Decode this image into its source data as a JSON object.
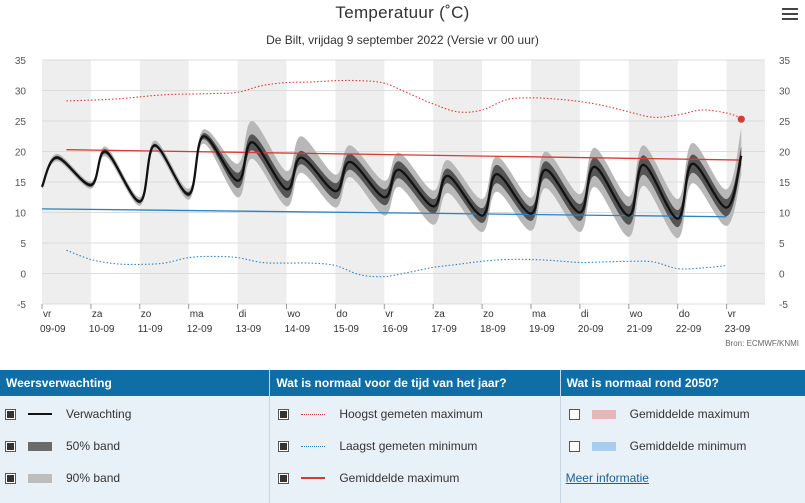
{
  "chart_data": {
    "type": "line",
    "title": "Temperatuur (˚C)",
    "subtitle": "De Bilt, vrijdag 9 september 2022 (Versie vr 00 uur)",
    "source": "Bron: ECMWF/KNMI",
    "ylim": [
      -5,
      35
    ],
    "y_ticks": [
      -5,
      0,
      5,
      10,
      15,
      20,
      25,
      30,
      35
    ],
    "x_ticks": [
      {
        "day": "vr",
        "date": "09-09"
      },
      {
        "day": "za",
        "date": "10-09"
      },
      {
        "day": "zo",
        "date": "11-09"
      },
      {
        "day": "ma",
        "date": "12-09"
      },
      {
        "day": "di",
        "date": "13-09"
      },
      {
        "day": "wo",
        "date": "14-09"
      },
      {
        "day": "do",
        "date": "15-09"
      },
      {
        "day": "vr",
        "date": "16-09"
      },
      {
        "day": "za",
        "date": "17-09"
      },
      {
        "day": "zo",
        "date": "18-09"
      },
      {
        "day": "ma",
        "date": "19-09"
      },
      {
        "day": "di",
        "date": "20-09"
      },
      {
        "day": "wo",
        "date": "21-09"
      },
      {
        "day": "do",
        "date": "22-09"
      },
      {
        "day": "vr",
        "date": "23-09"
      }
    ],
    "grid": true,
    "series": [
      {
        "name": "Verwachting",
        "color": "#111111",
        "diurnal": {
          "days": [
            0,
            0.3,
            1,
            1.3,
            2,
            2.3,
            3,
            3.3,
            4,
            4.3,
            5,
            5.3,
            6,
            6.3,
            7,
            7.3,
            8,
            8.3,
            9,
            9.3,
            10,
            10.3,
            11,
            11.3,
            12,
            12.3,
            13,
            13.3,
            14,
            14.3
          ],
          "values": [
            14.2,
            19.0,
            14.5,
            20.0,
            11.8,
            21.0,
            13.0,
            22.5,
            15.2,
            21.5,
            13.8,
            19.0,
            13.5,
            18.3,
            12.5,
            17.0,
            11.0,
            16.0,
            9.5,
            16.3,
            9.8,
            17.0,
            10.0,
            17.5,
            9.5,
            17.8,
            9.0,
            18.0,
            10.8,
            19.3
          ]
        }
      },
      {
        "name": "50% band",
        "color": "#555555",
        "days": [
          0,
          0.3,
          1,
          1.3,
          2,
          2.3,
          3,
          3.3,
          4,
          4.3,
          5,
          5.3,
          6,
          6.3,
          7,
          7.3,
          8,
          8.3,
          9,
          9.3,
          10,
          10.3,
          11,
          11.3,
          12,
          12.3,
          13,
          13.3,
          14,
          14.3
        ],
        "low": [
          14.0,
          18.7,
          14.2,
          19.6,
          11.5,
          20.7,
          12.6,
          22.0,
          14.0,
          20.2,
          12.4,
          17.9,
          12.2,
          17.0,
          11.2,
          15.6,
          9.8,
          14.8,
          8.3,
          14.8,
          8.6,
          15.6,
          8.6,
          16.0,
          8.0,
          16.2,
          7.6,
          16.5,
          9.4,
          17.8
        ],
        "high": [
          14.4,
          19.3,
          14.8,
          20.4,
          12.1,
          21.3,
          13.4,
          23.0,
          16.5,
          22.8,
          15.2,
          20.1,
          14.8,
          19.6,
          13.8,
          18.4,
          12.2,
          17.2,
          10.7,
          17.8,
          11.0,
          18.4,
          11.4,
          19.0,
          11.0,
          19.4,
          10.4,
          19.5,
          12.2,
          20.8
        ]
      },
      {
        "name": "90% band",
        "color": "#b8b8b8",
        "days": [
          0,
          0.3,
          1,
          1.3,
          2,
          2.3,
          3,
          3.3,
          4,
          4.3,
          5,
          5.3,
          6,
          6.3,
          7,
          7.3,
          8,
          8.3,
          9,
          9.3,
          10,
          10.3,
          11,
          11.3,
          12,
          12.3,
          13,
          13.3,
          14,
          14.3
        ],
        "low": [
          13.8,
          18.4,
          13.9,
          19.2,
          11.1,
          20.2,
          12.1,
          21.3,
          12.5,
          18.8,
          11.0,
          16.5,
          10.8,
          15.8,
          9.5,
          14.2,
          8.0,
          13.2,
          6.8,
          13.4,
          7.0,
          14.0,
          6.8,
          14.2,
          6.0,
          14.4,
          5.8,
          14.8,
          7.8,
          16.2
        ],
        "high": [
          14.6,
          19.6,
          15.1,
          20.8,
          12.5,
          21.8,
          13.9,
          23.6,
          18.0,
          25.0,
          16.8,
          22.5,
          16.2,
          21.0,
          15.2,
          19.8,
          13.6,
          18.6,
          12.2,
          19.2,
          12.4,
          20.0,
          13.0,
          20.6,
          12.6,
          21.0,
          12.2,
          21.4,
          13.8,
          23.8
        ]
      },
      {
        "name": "Hoogst gemeten maximum",
        "color": "#d93a36",
        "style": "dotted",
        "x": [
          0.5,
          1.5,
          2.5,
          3.5,
          4.0,
          4.5,
          5.0,
          5.5,
          6.0,
          6.5,
          7.0,
          7.5,
          8.0,
          8.5,
          9.0,
          9.5,
          10.0,
          10.5,
          11.0,
          11.5,
          12.0,
          12.5,
          13.0,
          13.5,
          14.0,
          14.3
        ],
        "y": [
          28.3,
          28.6,
          29.3,
          29.5,
          29.7,
          30.8,
          31.3,
          31.4,
          31.6,
          31.6,
          31.2,
          29.5,
          27.8,
          26.5,
          26.8,
          28.5,
          28.8,
          28.6,
          28.2,
          27.5,
          26.5,
          25.6,
          26.0,
          26.8,
          26.3,
          25.5
        ]
      },
      {
        "name": "Laagst gemeten minimum",
        "color": "#2a83c5",
        "style": "dotted",
        "x": [
          0.5,
          1.0,
          1.5,
          2.0,
          2.5,
          3.0,
          3.5,
          4.0,
          4.5,
          5.0,
          5.5,
          6.0,
          6.5,
          7.0,
          7.5,
          8.0,
          8.5,
          9.0,
          9.5,
          10.0,
          10.5,
          11.0,
          11.5,
          12.0,
          12.5,
          13.0,
          13.5,
          14.0
        ],
        "y": [
          3.8,
          2.3,
          1.6,
          1.5,
          1.7,
          2.6,
          2.8,
          2.6,
          1.8,
          1.7,
          1.7,
          1.3,
          -0.2,
          -0.5,
          0.2,
          1.0,
          1.5,
          2.0,
          2.3,
          2.3,
          2.1,
          1.8,
          1.9,
          2.0,
          1.9,
          0.8,
          0.9,
          1.3
        ]
      },
      {
        "name": "Gemiddelde maximum",
        "color": "#d93a36",
        "style": "solid",
        "x": [
          0.5,
          14.3
        ],
        "y": [
          20.3,
          18.6
        ]
      },
      {
        "name": "Gemiddelde minimum",
        "color": "#2a83c5",
        "style": "solid",
        "x": [
          0,
          14.0
        ],
        "y": [
          10.6,
          9.3
        ]
      }
    ],
    "marker": {
      "x": 14.3,
      "y": 25.3,
      "color": "#d93a36"
    }
  },
  "legend": {
    "forecast": {
      "header": "Weersverwachting",
      "items": [
        {
          "label": "Verwachting",
          "checked": true
        },
        {
          "label": "50% band",
          "checked": true
        },
        {
          "label": "90% band",
          "checked": true
        }
      ]
    },
    "normal": {
      "header": "Wat is normaal voor de tijd van het jaar?",
      "items": [
        {
          "label": "Hoogst gemeten maximum",
          "checked": true
        },
        {
          "label": "Laagst gemeten minimum",
          "checked": true
        },
        {
          "label": "Gemiddelde maximum",
          "checked": true
        }
      ]
    },
    "future": {
      "header": "Wat is normaal rond 2050?",
      "items": [
        {
          "label": "Gemiddelde maximum",
          "checked": false,
          "color": "#e9b6b8"
        },
        {
          "label": "Gemiddelde minimum",
          "checked": false,
          "color": "#a9cdee"
        }
      ],
      "link": "Meer informatie"
    }
  }
}
